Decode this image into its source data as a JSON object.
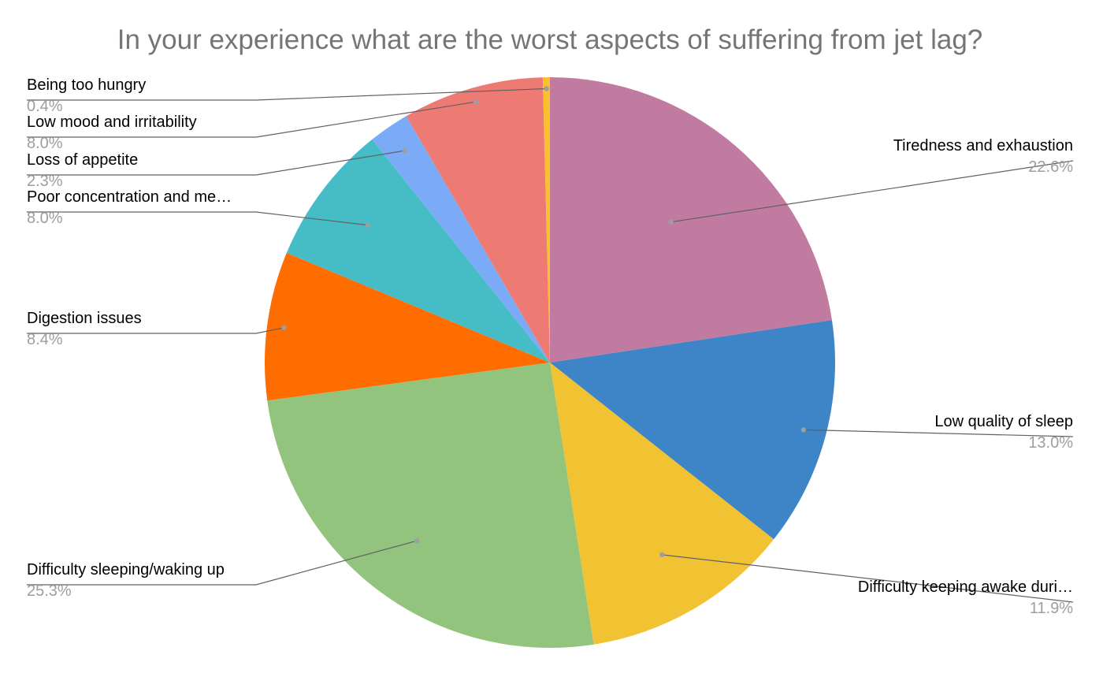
{
  "chart_data": {
    "type": "pie",
    "title": "In your experience what are the worst aspects of suffering from jet lag?",
    "start_angle_deg": 0,
    "direction": "clockwise",
    "slices": [
      {
        "label": "Tiredness and exhaustion",
        "value": 22.6,
        "display": "22.6%",
        "color": "#c27ba0"
      },
      {
        "label": "Low quality of sleep",
        "value": 13.0,
        "display": "13.0%",
        "color": "#3d85c6"
      },
      {
        "label": "Difficulty keeping awake duri…",
        "value": 11.9,
        "display": "11.9%",
        "color": "#f1c232"
      },
      {
        "label": "Difficulty sleeping/waking up",
        "value": 25.3,
        "display": "25.3%",
        "color": "#93c47d"
      },
      {
        "label": "Digestion issues",
        "value": 8.4,
        "display": "8.4%",
        "color": "#ff6d01"
      },
      {
        "label": "Poor concentration and me…",
        "value": 8.0,
        "display": "8.0%",
        "color": "#46bdc6"
      },
      {
        "label": "Loss of appetite",
        "value": 2.3,
        "display": "2.3%",
        "color": "#7baaf7"
      },
      {
        "label": "Low mood and irritability",
        "value": 8.0,
        "display": "8.0%",
        "color": "#ee7b73"
      },
      {
        "label": "Being too hungry",
        "value": 0.4,
        "display": "0.4%",
        "color": "#fbc02d"
      }
    ]
  }
}
